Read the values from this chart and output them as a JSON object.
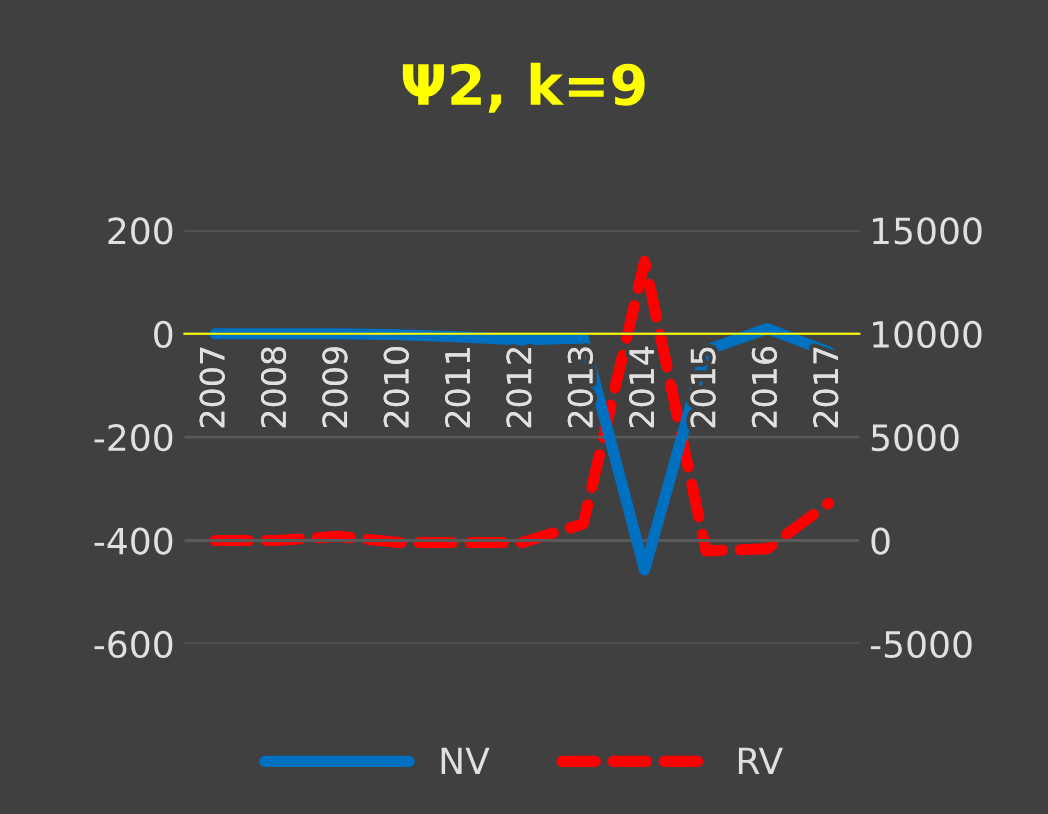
{
  "chart_data": {
    "type": "line",
    "title": "Ψ2, k=9",
    "categories": [
      "2007",
      "2008",
      "2009",
      "2010",
      "2011",
      "2012",
      "2013",
      "2014",
      "2015",
      "2016",
      "2017"
    ],
    "series": [
      {
        "name": "NV",
        "color": "#0070c0",
        "line_style": "solid",
        "values": [
          0,
          0,
          0,
          -2,
          -6,
          -12,
          -8,
          -457,
          -32,
          10,
          -35
        ]
      },
      {
        "name": "RV",
        "color": "#ff0000",
        "line_style": "dashed",
        "axis": "y2",
        "values": [
          0,
          0,
          200,
          -100,
          -100,
          -100,
          800,
          13500,
          -500,
          -400,
          1800
        ]
      }
    ],
    "ylim": [
      -600,
      200
    ],
    "yticks": [
      -600,
      -400,
      -200,
      0,
      200
    ],
    "y2lim": [
      -5000,
      15000
    ],
    "y2ticks": [
      -5000,
      0,
      5000,
      10000,
      15000
    ],
    "grid": "y",
    "legend": "bottom",
    "marker": "none"
  }
}
